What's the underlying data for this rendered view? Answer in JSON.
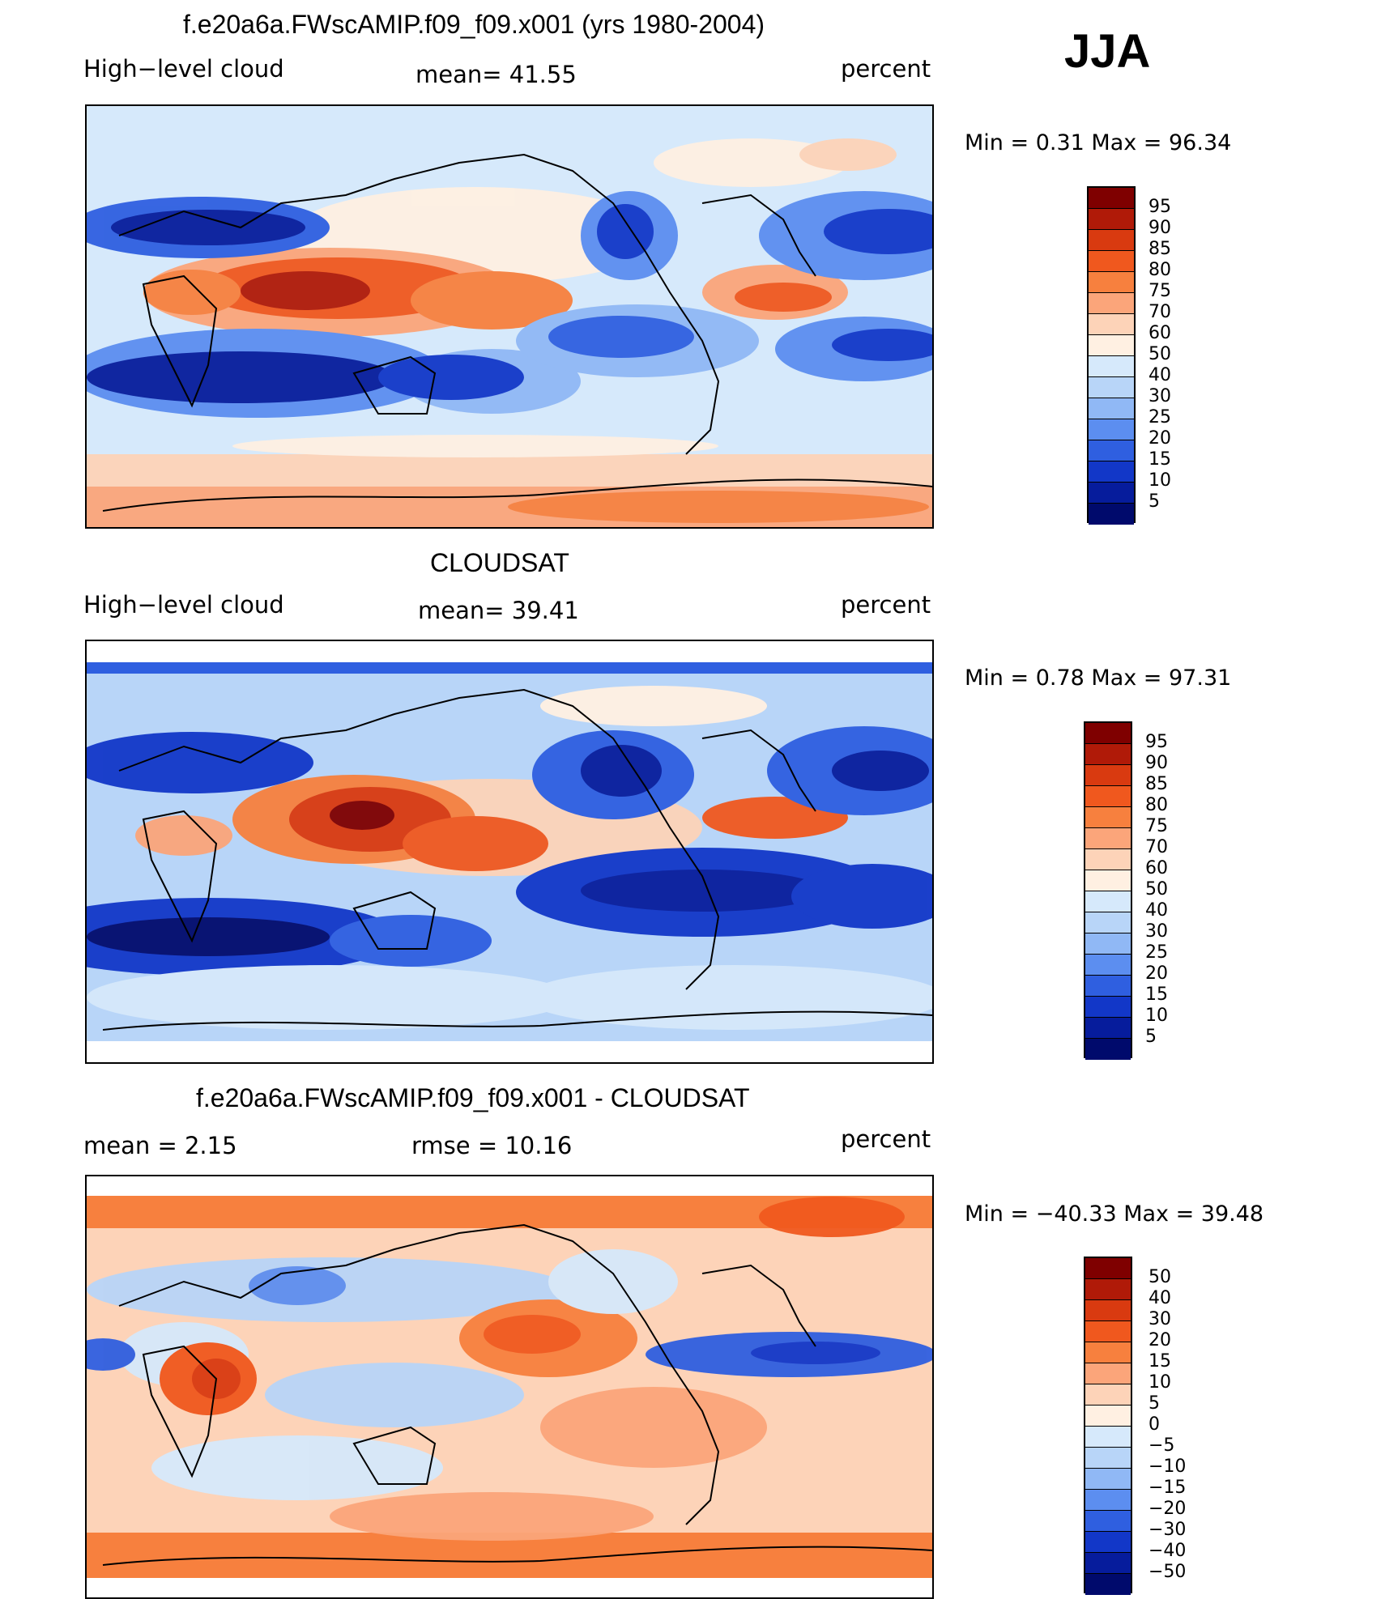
{
  "season": "JJA",
  "panels": [
    {
      "title": "f.e20a6a.FWscAMIP.f09_f09.x001 (yrs 1980-2004)",
      "left_label": "High−level cloud",
      "center_label": "mean=   41.55",
      "right_label": "percent",
      "minmax": "Min  =     0.31  Max  =    96.34",
      "colorbar_labels": [
        "95",
        "90",
        "85",
        "80",
        "75",
        "70",
        "60",
        "50",
        "40",
        "30",
        "25",
        "20",
        "15",
        "10",
        "5"
      ]
    },
    {
      "title": "CLOUDSAT",
      "left_label": "High−level cloud",
      "center_label": "mean=   39.41",
      "right_label": "percent",
      "minmax": "Min  =     0.78  Max  =    97.31",
      "colorbar_labels": [
        "95",
        "90",
        "85",
        "80",
        "75",
        "70",
        "60",
        "50",
        "40",
        "30",
        "25",
        "20",
        "15",
        "10",
        "5"
      ]
    },
    {
      "title": "f.e20a6a.FWscAMIP.f09_f09.x001 - CLOUDSAT",
      "left_label": "mean  =     2.15",
      "center_label": "rmse  =    10.16",
      "right_label": "percent",
      "minmax": "Min  = −40.33  Max  =    39.48",
      "colorbar_labels": [
        "50",
        "40",
        "30",
        "20",
        "15",
        "10",
        "5",
        "0",
        "−5",
        "−10",
        "−15",
        "−20",
        "−30",
        "−40",
        "−50"
      ]
    }
  ],
  "colors": {
    "scale": [
      "#7f0000",
      "#b01a08",
      "#d93a10",
      "#f0581e",
      "#f7803e",
      "#fba57a",
      "#fdd3b8",
      "#fff0e2",
      "#d6e9fb",
      "#b8d5f8",
      "#90b8f5",
      "#5c8ef0",
      "#2f5fe0",
      "#1237c8",
      "#061c9c",
      "#000a6c"
    ]
  }
}
